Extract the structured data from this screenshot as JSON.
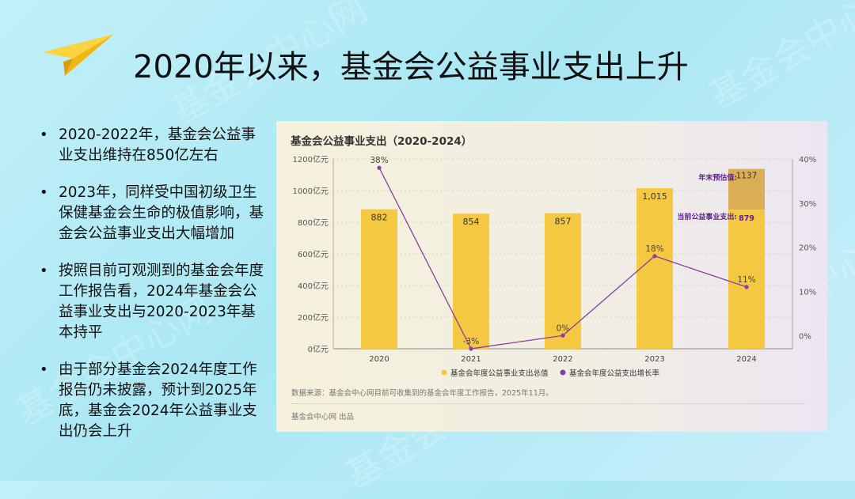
{
  "slide": {
    "title": "2020年以来，基金会公益事业支出上升",
    "bullets": [
      "2020-2022年，基金会公益事业支出维持在850亿左右",
      "2023年，同样受中国初级卫生保健基金会生命的极值影响，基金会公益事业支出大幅增加",
      "按照目前可观测到的基金会年度工作报告看，2024年基金会公益事业支出与2020-2023年基本持平",
      "由于部分基金会2024年度工作报告仍未披露，预计到2025年底，基金会2024年公益事业支出仍会上升"
    ]
  },
  "chart_data": {
    "type": "bar",
    "title": "基金会公益事业支出（2020-2024）",
    "categories": [
      "2020",
      "2021",
      "2022",
      "2023",
      "2024"
    ],
    "series": [
      {
        "name": "基金会年度公益事业支出总值",
        "type": "bar",
        "values": [
          882,
          854,
          857,
          1015,
          879
        ],
        "labels": [
          "882",
          "854",
          "857",
          "1,015",
          "879"
        ],
        "color": "#f5c842"
      },
      {
        "name": "基金会年度公益支出增长率",
        "type": "line",
        "axis": "right",
        "values": [
          38,
          -3,
          0,
          18,
          11
        ],
        "labels": [
          "38%",
          "-3%",
          "0%",
          "18%",
          "11%"
        ],
        "color": "#8a3fa0"
      }
    ],
    "estimate": {
      "category": "2024",
      "value": 1137,
      "label": "1137",
      "estimate_note": "年末预估值:",
      "current_note": "当前公益事业支出:",
      "color": "#d9ae55"
    },
    "y_left": {
      "min": 0,
      "max": 1200,
      "ticks": [
        0,
        200,
        400,
        600,
        800,
        1000,
        1200
      ],
      "tick_labels": [
        "0亿元",
        "200亿元",
        "400亿元",
        "600亿元",
        "800亿元",
        "1000亿元",
        "1200亿元"
      ]
    },
    "y_right": {
      "min": -3,
      "max": 40,
      "ticks": [
        0,
        10,
        20,
        30,
        40
      ],
      "tick_labels": [
        "0%",
        "10%",
        "20%",
        "30%",
        "40%"
      ]
    },
    "grid": true,
    "legend_position": "bottom",
    "source": "数据来源：基金会中心网目前可收集到的基金会年度工作报告，2025年11月。",
    "credit": "基金会中心网 出品"
  },
  "watermark_text": "基金会中心网",
  "colors": {
    "plane": "#f7c21b",
    "note_text": "#5b1f8c"
  }
}
